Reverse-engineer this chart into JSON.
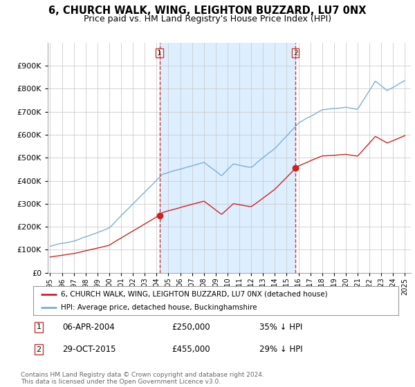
{
  "title": "6, CHURCH WALK, WING, LEIGHTON BUZZARD, LU7 0NX",
  "subtitle": "Price paid vs. HM Land Registry's House Price Index (HPI)",
  "hpi_label": "HPI: Average price, detached house, Buckinghamshire",
  "property_label": "6, CHURCH WALK, WING, LEIGHTON BUZZARD, LU7 0NX (detached house)",
  "sale1_date": "06-APR-2004",
  "sale1_price": 250000,
  "sale1_pct": "35% ↓ HPI",
  "sale2_date": "29-OCT-2015",
  "sale2_price": 455000,
  "sale2_pct": "29% ↓ HPI",
  "footer": "Contains HM Land Registry data © Crown copyright and database right 2024.\nThis data is licensed under the Open Government Licence v3.0.",
  "hpi_color": "#7bafd4",
  "property_color": "#cc2222",
  "vline_color": "#cc3333",
  "shade_color": "#ddeeff",
  "ylim": [
    0,
    1000000
  ],
  "xlim_start": 1994.8,
  "xlim_end": 2025.5,
  "background_color": "#ffffff",
  "grid_color": "#cccccc",
  "title_fontsize": 10.5,
  "subtitle_fontsize": 9
}
